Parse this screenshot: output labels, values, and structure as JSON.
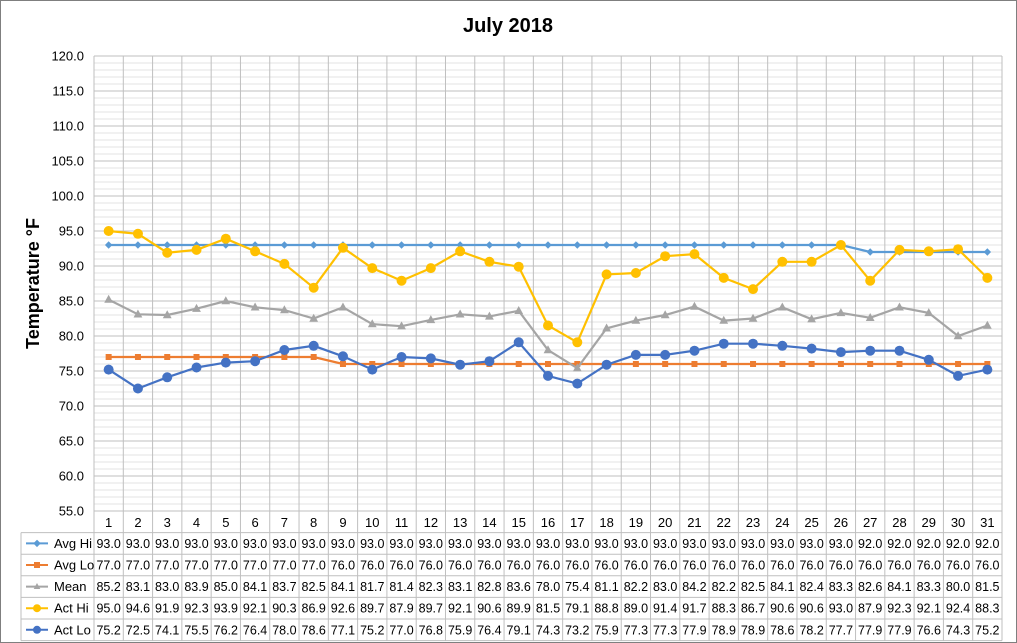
{
  "chart_data": {
    "type": "line",
    "title": "July 2018",
    "xlabel": "",
    "ylabel": "Temperature °F",
    "ylim": [
      55,
      120
    ],
    "y_step": 5,
    "y_tick_labels": [
      "55.0",
      "60.0",
      "65.0",
      "70.0",
      "75.0",
      "80.0",
      "85.0",
      "90.0",
      "95.0",
      "100.0",
      "105.0",
      "110.0",
      "115.0",
      "120.0"
    ],
    "grid": true,
    "legend_placement": "data-table",
    "categories": [
      "1",
      "2",
      "3",
      "4",
      "5",
      "6",
      "7",
      "8",
      "9",
      "10",
      "11",
      "12",
      "13",
      "14",
      "15",
      "16",
      "17",
      "18",
      "19",
      "20",
      "21",
      "22",
      "23",
      "24",
      "25",
      "26",
      "27",
      "28",
      "29",
      "30",
      "31"
    ],
    "series": [
      {
        "name": "Avg Hi",
        "color": "#5b9bd5",
        "marker": "diamond",
        "values": [
          93.0,
          93.0,
          93.0,
          93.0,
          93.0,
          93.0,
          93.0,
          93.0,
          93.0,
          93.0,
          93.0,
          93.0,
          93.0,
          93.0,
          93.0,
          93.0,
          93.0,
          93.0,
          93.0,
          93.0,
          93.0,
          93.0,
          93.0,
          93.0,
          93.0,
          93.0,
          92.0,
          92.0,
          92.0,
          92.0,
          92.0
        ]
      },
      {
        "name": "Avg Lo",
        "color": "#ed7d31",
        "marker": "square",
        "values": [
          77.0,
          77.0,
          77.0,
          77.0,
          77.0,
          77.0,
          77.0,
          77.0,
          76.0,
          76.0,
          76.0,
          76.0,
          76.0,
          76.0,
          76.0,
          76.0,
          76.0,
          76.0,
          76.0,
          76.0,
          76.0,
          76.0,
          76.0,
          76.0,
          76.0,
          76.0,
          76.0,
          76.0,
          76.0,
          76.0,
          76.0
        ]
      },
      {
        "name": "Mean",
        "color": "#a5a5a5",
        "marker": "triangle",
        "values": [
          85.2,
          83.1,
          83.0,
          83.9,
          85.0,
          84.1,
          83.7,
          82.5,
          84.1,
          81.7,
          81.4,
          82.3,
          83.1,
          82.8,
          83.6,
          78.0,
          75.4,
          81.1,
          82.2,
          83.0,
          84.2,
          82.2,
          82.5,
          84.1,
          82.4,
          83.3,
          82.6,
          84.1,
          83.3,
          80.0,
          81.5
        ]
      },
      {
        "name": "Act Hi",
        "color": "#ffc000",
        "marker": "circle",
        "values": [
          95.0,
          94.6,
          91.9,
          92.3,
          93.9,
          92.1,
          90.3,
          86.9,
          92.6,
          89.7,
          87.9,
          89.7,
          92.1,
          90.6,
          89.9,
          81.5,
          79.1,
          88.8,
          89.0,
          91.4,
          91.7,
          88.3,
          86.7,
          90.6,
          90.6,
          93.0,
          87.9,
          92.3,
          92.1,
          92.4,
          88.3
        ]
      },
      {
        "name": "Act Lo",
        "color": "#4472c4",
        "marker": "circle",
        "values": [
          75.2,
          72.5,
          74.1,
          75.5,
          76.2,
          76.4,
          78.0,
          78.6,
          77.1,
          75.2,
          77.0,
          76.8,
          75.9,
          76.4,
          79.1,
          74.3,
          73.2,
          75.9,
          77.3,
          77.3,
          77.9,
          78.9,
          78.9,
          78.6,
          78.2,
          77.7,
          77.9,
          77.9,
          76.6,
          74.3,
          75.2
        ]
      }
    ]
  }
}
